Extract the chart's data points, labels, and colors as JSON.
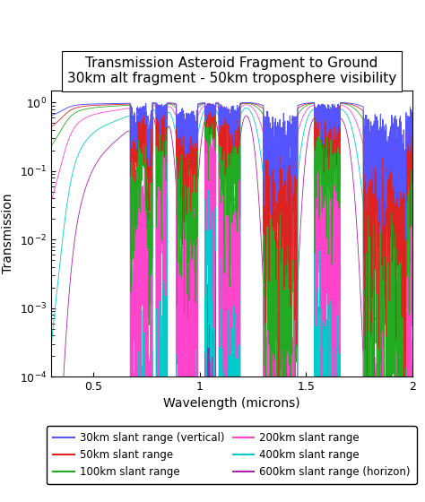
{
  "title": "Transmission Asteroid Fragment to Ground",
  "subtitle": "30km alt fragment - 50km troposphere visibility",
  "xlabel": "Wavelength (microns)",
  "ylabel": "Transmission",
  "xlim": [
    0.3,
    2.0
  ],
  "ylim": [
    0.0001,
    1.5
  ],
  "legend_entries": [
    {
      "label": "30km slant range (vertical)",
      "color": "#5555ff"
    },
    {
      "label": "50km slant range",
      "color": "#dd2222"
    },
    {
      "label": "100km slant range",
      "color": "#22aa22"
    },
    {
      "label": "200km slant range",
      "color": "#ff44cc"
    },
    {
      "label": "400km slant range",
      "color": "#00cccc"
    },
    {
      "label": "600km slant range (horizon)",
      "color": "#aa22aa"
    }
  ],
  "rayleigh_scale": [
    0.04,
    0.08,
    0.15,
    0.35,
    0.9,
    2.0
  ],
  "water_scale": [
    0.05,
    0.1,
    0.2,
    0.5,
    1.2,
    3.0
  ],
  "ozone_scale": [
    0.05,
    0.08,
    0.12,
    0.25,
    0.5,
    0.9
  ],
  "background_color": "#ffffff",
  "title_fontsize": 11,
  "axis_fontsize": 10,
  "tick_fontsize": 9,
  "legend_fontsize": 8.5
}
